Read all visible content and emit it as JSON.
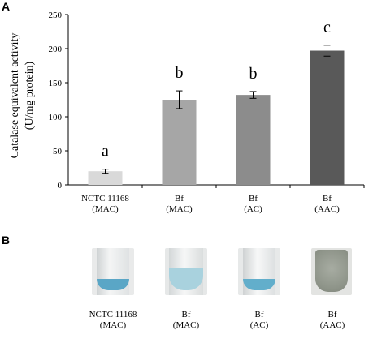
{
  "panels": {
    "a": "A",
    "b": "B"
  },
  "chart_data": {
    "type": "bar",
    "ylabel_line1": "Catalase equivalent activity",
    "ylabel_line2": "(U/mg protein)",
    "ylim": [
      0,
      250
    ],
    "yticks": [
      0,
      50,
      100,
      150,
      200,
      250
    ],
    "categories": [
      {
        "line1": "NCTC 11168",
        "line2": "(MAC)"
      },
      {
        "line1": "Bf",
        "line2": "(MAC)"
      },
      {
        "line1": "Bf",
        "line2": "(AC)"
      },
      {
        "line1": "Bf",
        "line2": "(AAC)"
      }
    ],
    "values": [
      20,
      125,
      132,
      197
    ],
    "errors": [
      3,
      13,
      5,
      8
    ],
    "significance": [
      "a",
      "b",
      "b",
      "c"
    ],
    "bar_colors": [
      "#d9d9d9",
      "#a6a6a6",
      "#8c8c8c",
      "#595959"
    ],
    "grid": false
  },
  "tubes": [
    {
      "line1": "NCTC 11168",
      "line2": "(MAC)"
    },
    {
      "line1": "Bf",
      "line2": "(MAC)"
    },
    {
      "line1": "Bf",
      "line2": "(AC)"
    },
    {
      "line1": "Bf",
      "line2": "(AAC)"
    }
  ]
}
